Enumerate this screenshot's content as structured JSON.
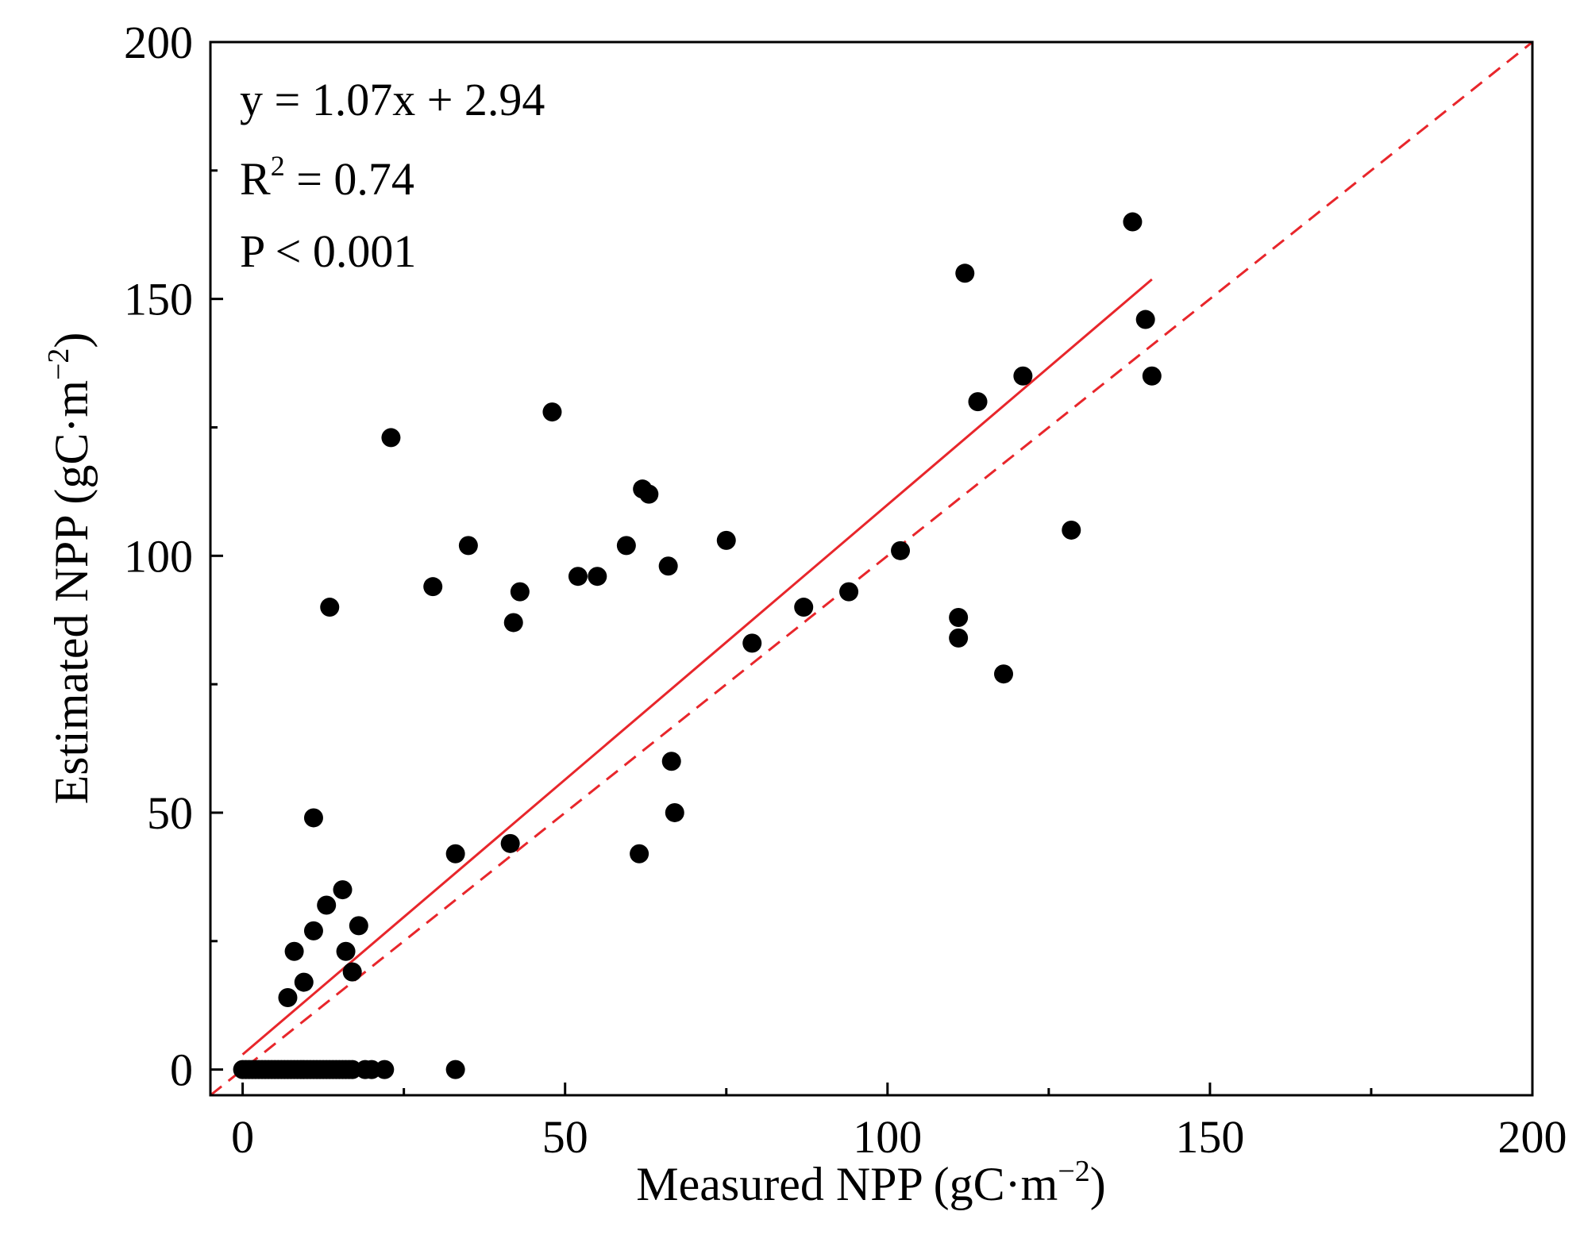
{
  "chart_data": {
    "type": "scatter",
    "xlabel": "Measured NPP (gC·m",
    "xlabel_sup": "−2",
    "xlabel_end": ")",
    "ylabel": "Estimated NPP (gC·m",
    "ylabel_sup": "−2",
    "ylabel_end": ")",
    "xlim": [
      -5,
      200
    ],
    "ylim": [
      -5,
      200
    ],
    "x_ticks": [
      0,
      50,
      100,
      150,
      200
    ],
    "y_ticks": [
      0,
      50,
      100,
      150,
      200
    ],
    "x_tick_labels": [
      "0",
      "50",
      "100",
      "150",
      "200"
    ],
    "y_tick_labels": [
      "0",
      "50",
      "100",
      "150",
      "200"
    ],
    "grid": false,
    "annotations": {
      "equation": "y = 1.07x + 2.94",
      "r2_prefix": "R",
      "r2_sup": "2",
      "r2_value": " = 0.74",
      "p_value": "P < 0.001"
    },
    "fit_line": {
      "slope": 1.07,
      "intercept": 2.94,
      "x_range": [
        0,
        141
      ],
      "color": "#e8262b",
      "style": "solid"
    },
    "one_to_one_line": {
      "slope": 1,
      "intercept": 0,
      "x_range": [
        -5,
        200
      ],
      "color": "#e8262b",
      "style": "dashed"
    },
    "series": [
      {
        "name": "Sites",
        "color": "#000000",
        "points": [
          [
            0,
            0
          ],
          [
            0.5,
            0
          ],
          [
            1,
            0
          ],
          [
            1.5,
            0
          ],
          [
            2,
            0
          ],
          [
            2.5,
            0
          ],
          [
            3,
            0
          ],
          [
            3.5,
            0
          ],
          [
            4,
            0
          ],
          [
            4.5,
            0
          ],
          [
            5,
            0
          ],
          [
            5.5,
            0
          ],
          [
            6,
            0
          ],
          [
            6.5,
            0
          ],
          [
            7,
            0
          ],
          [
            7.5,
            0
          ],
          [
            8,
            0
          ],
          [
            8.5,
            0
          ],
          [
            9,
            0
          ],
          [
            9.5,
            0
          ],
          [
            10,
            0
          ],
          [
            10.5,
            0
          ],
          [
            11,
            0
          ],
          [
            11.5,
            0
          ],
          [
            12,
            0
          ],
          [
            12.5,
            0
          ],
          [
            13,
            0
          ],
          [
            13.5,
            0
          ],
          [
            14,
            0
          ],
          [
            14.5,
            0
          ],
          [
            15,
            0
          ],
          [
            15.5,
            0
          ],
          [
            16,
            0
          ],
          [
            16.5,
            0
          ],
          [
            17,
            0
          ],
          [
            19,
            0
          ],
          [
            20,
            0
          ],
          [
            22,
            0
          ],
          [
            33,
            0
          ],
          [
            7,
            14
          ],
          [
            8,
            23
          ],
          [
            9.5,
            17
          ],
          [
            11,
            27
          ],
          [
            11,
            49
          ],
          [
            13,
            32
          ],
          [
            13.5,
            90
          ],
          [
            15.5,
            35
          ],
          [
            16,
            23
          ],
          [
            17,
            19
          ],
          [
            18,
            28
          ],
          [
            23,
            123
          ],
          [
            29.5,
            94
          ],
          [
            33,
            42
          ],
          [
            35,
            102
          ],
          [
            41.5,
            44
          ],
          [
            42,
            87
          ],
          [
            43,
            93
          ],
          [
            48,
            128
          ],
          [
            52,
            96
          ],
          [
            55,
            96
          ],
          [
            59.5,
            102
          ],
          [
            61.5,
            42
          ],
          [
            62,
            113
          ],
          [
            63,
            112
          ],
          [
            66,
            98
          ],
          [
            66.5,
            60
          ],
          [
            67,
            50
          ],
          [
            75,
            103
          ],
          [
            79,
            83
          ],
          [
            87,
            90
          ],
          [
            94,
            93
          ],
          [
            102,
            101
          ],
          [
            111,
            88
          ],
          [
            111,
            84
          ],
          [
            112,
            155
          ],
          [
            114,
            130
          ],
          [
            118,
            77
          ],
          [
            121,
            135
          ],
          [
            128.5,
            105
          ],
          [
            138,
            165
          ],
          [
            140,
            146
          ],
          [
            141,
            135
          ]
        ]
      }
    ]
  }
}
